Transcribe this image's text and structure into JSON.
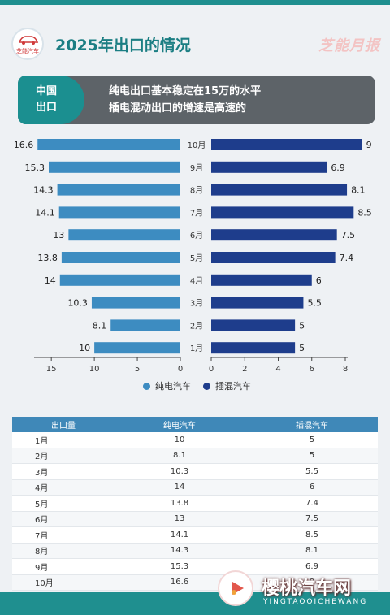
{
  "header": {
    "logo_text": "芝能汽车",
    "title": "2025年出口的情况",
    "brand": "芝能月报"
  },
  "banner": {
    "tag_line1": "中国",
    "tag_line2": "出口",
    "text_line1": "纯电出口基本稳定在15万的水平",
    "text_line2": "插电混动出口的增速是高速的"
  },
  "colors": {
    "pure_ev": "#3d8cc1",
    "phev": "#1e3d8c",
    "teal": "#1b8f90"
  },
  "chart_data": {
    "type": "bar",
    "orientation": "horizontal-butterfly",
    "categories": [
      "1月",
      "2月",
      "3月",
      "4月",
      "5月",
      "6月",
      "7月",
      "8月",
      "9月",
      "10月"
    ],
    "series": [
      {
        "name": "纯电汽车",
        "values": [
          10,
          8.1,
          10.3,
          14,
          13.8,
          13,
          14.1,
          14.3,
          15.3,
          16.6
        ],
        "xlim": [
          0,
          17
        ],
        "ticks": [
          15,
          10,
          5,
          0
        ]
      },
      {
        "name": "插混汽车",
        "values": [
          5,
          5,
          5.5,
          6,
          7.4,
          7.5,
          8.5,
          8.1,
          6.9,
          9
        ],
        "xlim": [
          0,
          9
        ],
        "ticks": [
          0,
          2,
          4,
          6,
          8
        ]
      }
    ],
    "legend": "bottom-center"
  },
  "legend": {
    "pure": "纯电汽车",
    "phev": "插混汽车"
  },
  "table": {
    "headers": [
      "出口量",
      "纯电汽车",
      "插混汽车"
    ],
    "rows": [
      [
        "1月",
        "10",
        "5"
      ],
      [
        "2月",
        "8.1",
        "5"
      ],
      [
        "3月",
        "10.3",
        "5.5"
      ],
      [
        "4月",
        "14",
        "6"
      ],
      [
        "5月",
        "13.8",
        "7.4"
      ],
      [
        "6月",
        "13",
        "7.5"
      ],
      [
        "7月",
        "14.1",
        "8.5"
      ],
      [
        "8月",
        "14.3",
        "8.1"
      ],
      [
        "9月",
        "15.3",
        "6.9"
      ],
      [
        "10月",
        "16.6",
        "9"
      ]
    ]
  },
  "watermark": {
    "name": "樱桃汽车网",
    "sub": "YINGTAOQICHEWANG"
  }
}
